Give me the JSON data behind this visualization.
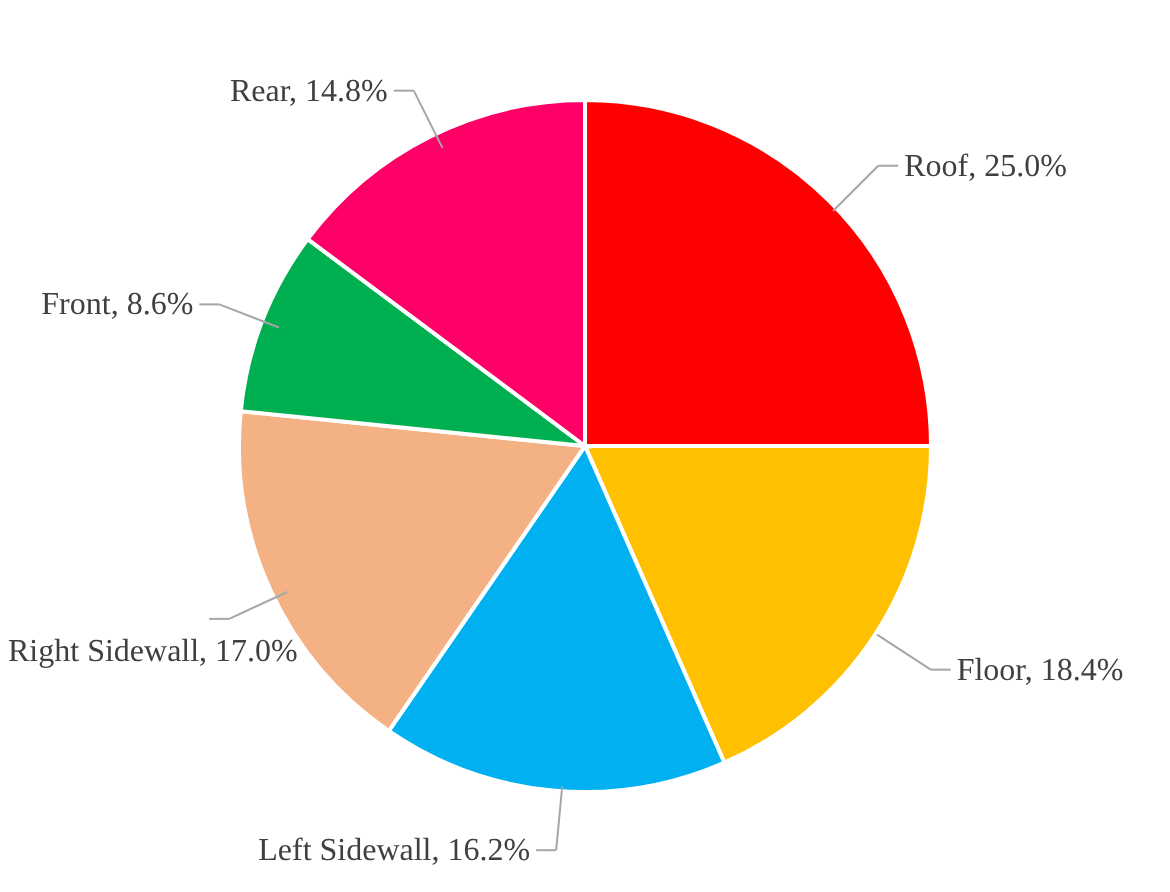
{
  "chart_data": {
    "type": "pie",
    "categories": [
      "Roof",
      "Floor",
      "Left Sidewall",
      "Right Sidewall",
      "Front",
      "Rear"
    ],
    "values": [
      25.0,
      18.4,
      16.2,
      17.0,
      8.6,
      14.8
    ],
    "value_labels": [
      "25.0%",
      "18.4%",
      "16.2%",
      "17.0%",
      "8.6%",
      "14.8%"
    ],
    "colors": [
      "#ff0000",
      "#ffc000",
      "#00b0f0",
      "#f4b183",
      "#00b050",
      "#ff0066"
    ]
  }
}
